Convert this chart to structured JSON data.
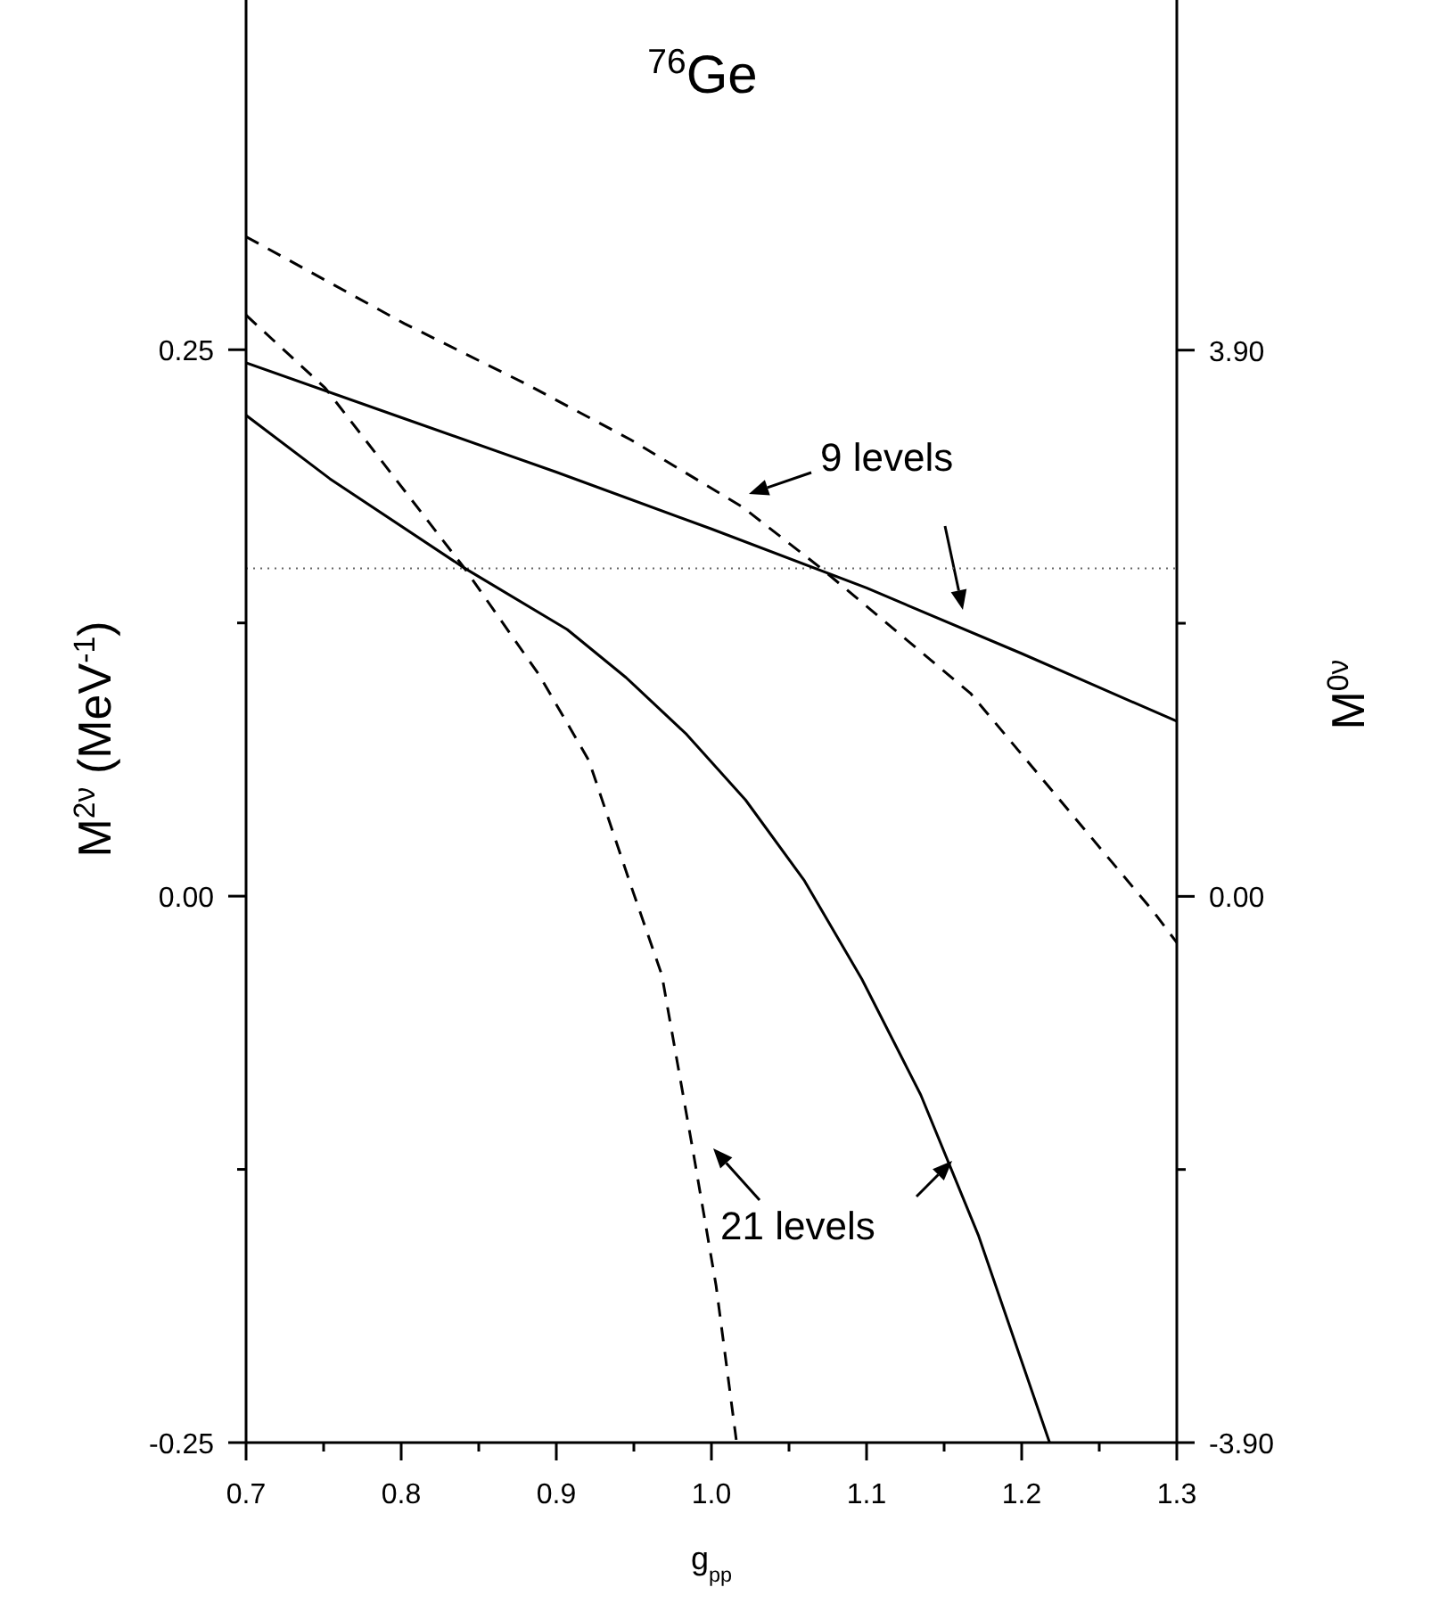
{
  "chart_data": {
    "type": "line",
    "title": "$^{76}$Ge",
    "xlabel": "g$_{pp}$",
    "ylabel": "M$^{2ν}$ (MeV$^{-1}$)",
    "y2label": "M$^{0ν}$",
    "xlim": [
      0.7,
      1.3
    ],
    "xticks": [
      0.7,
      {
        "value": 0.75,
        "label": null
      },
      0.8,
      {
        "value": 0.85,
        "label": null
      },
      0.9,
      {
        "value": 0.95,
        "label": null
      },
      {
        "value": 1.0,
        "label": "1.0"
      },
      {
        "value": 1.05,
        "label": null
      },
      1.1,
      {
        "value": 1.15,
        "label": null
      },
      1.2,
      {
        "value": 1.25,
        "label": null
      },
      1.3
    ],
    "ylim": [
      -0.25,
      0.41
    ],
    "yticks": [
      -0.25,
      {
        "value": -0.125,
        "label": null
      },
      {
        "value": 0,
        "label": "0.00"
      },
      {
        "value": 0.125,
        "label": null
      },
      0.25
    ],
    "y2lim": [
      -3.9,
      6.4
    ],
    "y2ticks": [
      {
        "value": -3.9,
        "label": "-3.90"
      },
      {
        "value": -1.95,
        "label": null
      },
      {
        "value": 0,
        "label": "0.00"
      },
      {
        "value": 1.95,
        "label": null
      },
      {
        "value": 3.9,
        "label": "3.90"
      }
    ],
    "series": [
      {
        "color": "#000000",
        "line_style": "solid",
        "x": [
          0.7,
          0.8,
          0.9,
          1.0,
          1.1,
          1.2,
          1.3
        ],
        "values": [
          0.244,
          0.219,
          0.194,
          0.168,
          0.141,
          0.111,
          0.08
        ]
      },
      {
        "color": "#000000",
        "line_style": "solid",
        "x": [
          0.7,
          0.754,
          0.841,
          0.907,
          0.945,
          0.984,
          1.022,
          1.06,
          1.097,
          1.135,
          1.172,
          1.218
        ],
        "values": [
          0.22,
          0.191,
          0.15,
          0.122,
          0.1,
          0.074,
          0.044,
          0.007,
          -0.038,
          -0.091,
          -0.155,
          -0.25
        ]
      },
      {
        "color": "#000000",
        "line_style": "dashed",
        "axis": "y2",
        "x": [
          0.7,
          0.802,
          0.882,
          0.948,
          1.02,
          1.071,
          1.167,
          1.285,
          1.3
        ],
        "values": [
          4.71,
          4.09,
          3.65,
          3.26,
          2.78,
          2.34,
          1.45,
          -0.11,
          -0.33
        ]
      },
      {
        "color": "#000000",
        "line_style": "dashed",
        "axis": "y2",
        "x": [
          0.7,
          0.751,
          0.841,
          0.889,
          0.921,
          0.948,
          0.968,
          0.988,
          1.003,
          1.016
        ],
        "values": [
          4.15,
          3.63,
          2.34,
          1.58,
          0.97,
          0.08,
          -0.56,
          -1.81,
          -2.78,
          -3.88
        ]
      }
    ],
    "ref_lines": [
      {
        "axis": "y",
        "value": 0.15,
        "color": "#666666",
        "line_style": "dotted"
      }
    ],
    "annotations": [
      "9 levels",
      "21 levels"
    ],
    "marker": "none"
  }
}
